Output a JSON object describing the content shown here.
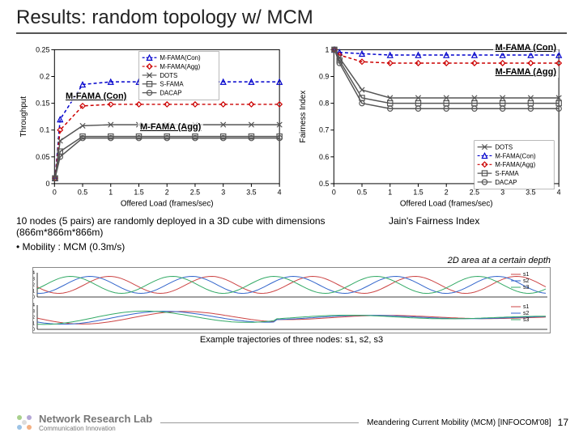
{
  "title": "Results: random topology w/ MCM",
  "annot": {
    "left_con": "M-FAMA (Con)",
    "left_agg": "M-FAMA (Agg)",
    "right_con": "M-FAMA (Con)",
    "right_agg": "M-FAMA (Agg)"
  },
  "caption": {
    "left": "10 nodes (5 pairs) are randomly deployed in a 3D cube with dimensions (866m*866m*866m)",
    "right": "Jain's Fairness Index"
  },
  "bullet": "Mobility : MCM (0.3m/s)",
  "note": "2D area at a certain depth",
  "traj_caption": "Example trajectories of three nodes: s1, s2, s3",
  "reference": "Meandering Current Mobility (MCM) [INFOCOM'08]",
  "logo": {
    "main": "Network Research Lab",
    "sub": "Communication Innovation"
  },
  "pagenum": "17",
  "chart_left": {
    "xlabel": "Offered Load (frames/sec)",
    "ylabel": "Throughput",
    "xlim": [
      0,
      4
    ],
    "ylim": [
      0,
      0.25
    ],
    "xticks": [
      0,
      0.5,
      1,
      1.5,
      2,
      2.5,
      3,
      3.5,
      4
    ],
    "yticks": [
      0,
      0.05,
      0.1,
      0.15,
      0.2,
      0.25
    ],
    "legend": [
      "M-FAMA(Con)",
      "M-FAMA(Agg)",
      "DOTS",
      "S-FAMA",
      "DACAP"
    ],
    "series": {
      "con": {
        "color": "#0000cc",
        "dash": "4,3",
        "x": [
          0.01,
          0.1,
          0.5,
          1,
          1.5,
          2,
          2.5,
          3,
          3.5,
          4
        ],
        "y": [
          0.01,
          0.12,
          0.185,
          0.19,
          0.19,
          0.19,
          0.19,
          0.19,
          0.19,
          0.19
        ],
        "marker": "triangle"
      },
      "agg": {
        "color": "#cc0000",
        "dash": "4,3",
        "x": [
          0.01,
          0.1,
          0.5,
          1,
          1.5,
          2,
          2.5,
          3,
          3.5,
          4
        ],
        "y": [
          0.01,
          0.1,
          0.145,
          0.148,
          0.148,
          0.148,
          0.148,
          0.148,
          0.148,
          0.148
        ],
        "marker": "diamond"
      },
      "dots": {
        "color": "#555",
        "x": [
          0.01,
          0.1,
          0.5,
          1,
          1.5,
          2,
          2.5,
          3,
          3.5,
          4
        ],
        "y": [
          0.01,
          0.08,
          0.108,
          0.11,
          0.11,
          0.11,
          0.11,
          0.11,
          0.11,
          0.11
        ],
        "marker": "x"
      },
      "sfama": {
        "color": "#555",
        "x": [
          0.01,
          0.1,
          0.5,
          1,
          1.5,
          2,
          2.5,
          3,
          3.5,
          4
        ],
        "y": [
          0.01,
          0.06,
          0.088,
          0.088,
          0.088,
          0.088,
          0.088,
          0.088,
          0.088,
          0.088
        ],
        "marker": "square"
      },
      "dacap": {
        "color": "#555",
        "x": [
          0.01,
          0.1,
          0.5,
          1,
          1.5,
          2,
          2.5,
          3,
          3.5,
          4
        ],
        "y": [
          0.01,
          0.05,
          0.085,
          0.085,
          0.085,
          0.085,
          0.085,
          0.085,
          0.085,
          0.085
        ],
        "marker": "circle"
      }
    }
  },
  "chart_right": {
    "xlabel": "Offered Load (frames/sec)",
    "ylabel": "Fairness Index",
    "xlim": [
      0,
      4
    ],
    "ylim": [
      0.5,
      1
    ],
    "xticks": [
      0,
      0.5,
      1,
      1.5,
      2,
      2.5,
      3,
      3.5,
      4
    ],
    "yticks": [
      0.5,
      0.6,
      0.7,
      0.8,
      0.9,
      1
    ],
    "legend": [
      "DOTS",
      "M-FAMA(Con)",
      "M-FAMA(Agg)",
      "S-FAMA",
      "DACAP"
    ],
    "series": {
      "con": {
        "color": "#0000cc",
        "dash": "4,3",
        "x": [
          0.01,
          0.1,
          0.5,
          1,
          1.5,
          2,
          2.5,
          3,
          3.5,
          4
        ],
        "y": [
          1,
          0.99,
          0.985,
          0.98,
          0.98,
          0.98,
          0.98,
          0.98,
          0.98,
          0.98
        ],
        "marker": "triangle"
      },
      "agg": {
        "color": "#cc0000",
        "dash": "4,3",
        "x": [
          0.01,
          0.1,
          0.5,
          1,
          1.5,
          2,
          2.5,
          3,
          3.5,
          4
        ],
        "y": [
          1,
          0.98,
          0.955,
          0.95,
          0.95,
          0.95,
          0.95,
          0.95,
          0.95,
          0.95
        ],
        "marker": "diamond"
      },
      "dots": {
        "color": "#555",
        "x": [
          0.01,
          0.1,
          0.5,
          1,
          1.5,
          2,
          2.5,
          3,
          3.5,
          4
        ],
        "y": [
          1,
          0.97,
          0.85,
          0.82,
          0.82,
          0.82,
          0.82,
          0.82,
          0.82,
          0.82
        ],
        "marker": "x"
      },
      "sfama": {
        "color": "#555",
        "x": [
          0.01,
          0.1,
          0.5,
          1,
          1.5,
          2,
          2.5,
          3,
          3.5,
          4
        ],
        "y": [
          1,
          0.96,
          0.82,
          0.8,
          0.8,
          0.8,
          0.8,
          0.8,
          0.8,
          0.8
        ],
        "marker": "square"
      },
      "dacap": {
        "color": "#555",
        "x": [
          0.01,
          0.1,
          0.5,
          1,
          1.5,
          2,
          2.5,
          3,
          3.5,
          4
        ],
        "y": [
          1,
          0.95,
          0.8,
          0.78,
          0.78,
          0.78,
          0.78,
          0.78,
          0.78,
          0.78
        ],
        "marker": "circle"
      }
    }
  },
  "colors": {
    "blue": "#0000cc",
    "red": "#cc0000",
    "grey": "#555555",
    "axis": "#000000",
    "wave1": "#cc4444",
    "wave2": "#3366cc",
    "wave3": "#33aa66"
  }
}
